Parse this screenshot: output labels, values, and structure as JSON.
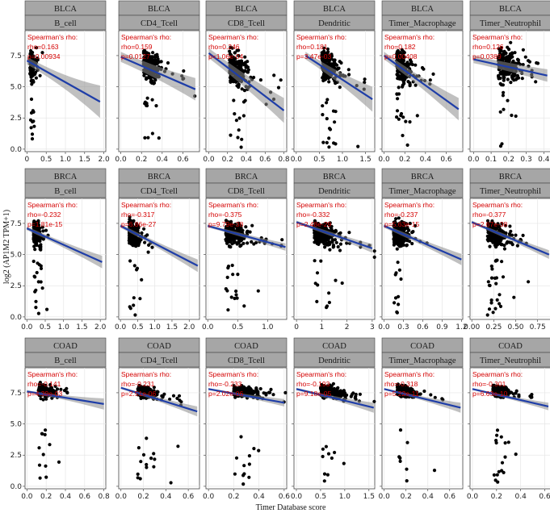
{
  "figure": {
    "xlabel": "Timer Database score",
    "ylabel": "log2 (AP1M2 TPM+1)"
  },
  "stats_label": "Spearman's rho:",
  "colors": {
    "strip_bg": "#a6a6a6",
    "panel_border": "#444444",
    "grid": "#e6e6e6",
    "point": "#000000",
    "fit_line": "#1f3ea8",
    "band": "#8c8c8c",
    "stat_text": "#d40000"
  },
  "chart_data": [
    {
      "type": "scatter",
      "cancer": "BLCA",
      "cell": "B_cell",
      "x_ticks": [
        0.0,
        0.5,
        1.0,
        1.5,
        2.0
      ],
      "x_tick_labels": [
        "0",
        "0.5",
        "1.0",
        "1.5",
        "2.0"
      ],
      "xlim": [
        -0.05,
        2.05
      ],
      "y_ticks": [
        0.0,
        2.5,
        5.0,
        7.5
      ],
      "y_tick_labels": [
        "0.0",
        "2.5",
        "5.0",
        "7.5"
      ],
      "ylim": [
        -0.2,
        9.5
      ],
      "rho": "rho=0.163",
      "p": "p=0.00934",
      "fit": {
        "x": [
          0.0,
          1.9
        ],
        "y": [
          7.1,
          3.8
        ]
      },
      "band_width": [
        0.3,
        1.3
      ],
      "cloud": {
        "cx": 0.08,
        "sx": 0.09,
        "cy": 6.8,
        "sy": 1.3,
        "n": 160,
        "seed": 11
      }
    },
    {
      "type": "scatter",
      "cancer": "BLCA",
      "cell": "CD4_Tcell",
      "x_ticks": [
        0.0,
        0.2,
        0.4,
        0.6
      ],
      "x_tick_labels": [
        "0.0",
        "0.2",
        "0.4",
        "0.6"
      ],
      "xlim": [
        -0.02,
        0.76
      ],
      "y_ticks": [
        0.0,
        2.5,
        5.0,
        7.5
      ],
      "y_tick_labels": [
        "",
        "",
        "",
        ""
      ],
      "ylim": [
        -0.2,
        9.5
      ],
      "rho": "rho=0.159",
      "p": "p=0.0127",
      "fit": {
        "x": [
          0.0,
          0.72
        ],
        "y": [
          7.4,
          4.8
        ]
      },
      "band_width": [
        0.4,
        0.9
      ],
      "cloud": {
        "cx": 0.22,
        "sx": 0.12,
        "cy": 6.8,
        "sy": 1.4,
        "n": 220,
        "seed": 12
      }
    },
    {
      "type": "scatter",
      "cancer": "BLCA",
      "cell": "CD8_Tcell",
      "x_ticks": [
        0.0,
        0.2,
        0.4,
        0.6,
        0.8
      ],
      "x_tick_labels": [
        "0.0",
        "0.2",
        "0.4",
        "0.6",
        "0.8"
      ],
      "xlim": [
        -0.03,
        0.83
      ],
      "y_ticks": [
        0.0,
        2.5,
        5.0,
        7.5
      ],
      "y_tick_labels": [
        "",
        "",
        "",
        ""
      ],
      "ylim": [
        -0.2,
        9.5
      ],
      "rho": "rho=0.246",
      "p": "p=1.06e-04",
      "fit": {
        "x": [
          0.0,
          0.8
        ],
        "y": [
          7.7,
          3.1
        ]
      },
      "band_width": [
        0.4,
        1.0
      ],
      "cloud": {
        "cx": 0.22,
        "sx": 0.14,
        "cy": 6.7,
        "sy": 1.6,
        "n": 220,
        "seed": 13
      }
    },
    {
      "type": "scatter",
      "cancer": "BLCA",
      "cell": "Dendritic",
      "x_ticks": [
        0.0,
        0.5,
        1.0,
        1.5
      ],
      "x_tick_labels": [
        "0.0",
        "0.5",
        "1.0",
        "1.5"
      ],
      "xlim": [
        -0.05,
        1.7
      ],
      "y_ticks": [
        0.0,
        2.5,
        5.0,
        7.5
      ],
      "y_tick_labels": [
        "",
        "",
        "",
        ""
      ],
      "ylim": [
        -0.2,
        9.5
      ],
      "rho": "rho=0.181",
      "p": "p=3.47e-03",
      "fit": {
        "x": [
          0.2,
          1.65
        ],
        "y": [
          7.5,
          4.0
        ]
      },
      "band_width": [
        0.3,
        1.0
      ],
      "cloud": {
        "cx": 0.55,
        "sx": 0.25,
        "cy": 6.9,
        "sy": 1.5,
        "n": 220,
        "seed": 14
      }
    },
    {
      "type": "scatter",
      "cancer": "BLCA",
      "cell": "Timer_Macrophage",
      "x_ticks": [
        0.0,
        0.2,
        0.4,
        0.6
      ],
      "x_tick_labels": [
        "0.0",
        "0.2",
        "0.4",
        "0.6"
      ],
      "xlim": [
        -0.02,
        0.76
      ],
      "y_ticks": [
        0.0,
        2.5,
        5.0,
        7.5
      ],
      "y_tick_labels": [
        "",
        "",
        "",
        ""
      ],
      "ylim": [
        -0.2,
        9.5
      ],
      "rho": "rho=0.182",
      "p": "p=0.00408",
      "fit": {
        "x": [
          0.0,
          0.72
        ],
        "y": [
          7.5,
          3.2
        ]
      },
      "band_width": [
        0.3,
        0.9
      ],
      "cloud": {
        "cx": 0.12,
        "sx": 0.09,
        "cy": 6.8,
        "sy": 1.5,
        "n": 200,
        "seed": 15
      }
    },
    {
      "type": "scatter",
      "cancer": "BLCA",
      "cell": "Timer_Neutrophil",
      "x_ticks": [
        0.0,
        0.1,
        0.2,
        0.3,
        0.4
      ],
      "x_tick_labels": [
        "0.0",
        "0.1",
        "0.2",
        "0.3",
        "0.4"
      ],
      "xlim": [
        -0.02,
        0.44
      ],
      "y_ticks": [
        0.0,
        2.5,
        5.0,
        7.5
      ],
      "y_tick_labels": [
        "",
        "",
        "",
        ""
      ],
      "ylim": [
        -0.2,
        9.5
      ],
      "rho": "rho=0.126",
      "p": "p=0.0389",
      "fit": {
        "x": [
          0.0,
          0.42
        ],
        "y": [
          7.2,
          5.9
        ]
      },
      "band_width": [
        0.3,
        0.5
      ],
      "cloud": {
        "cx": 0.14,
        "sx": 0.08,
        "cy": 6.8,
        "sy": 1.5,
        "n": 220,
        "seed": 16
      }
    },
    {
      "type": "scatter",
      "cancer": "BRCA",
      "cell": "B_cell",
      "x_ticks": [
        0.0,
        0.5,
        1.0,
        1.5,
        2.0
      ],
      "x_tick_labels": [
        "0.0",
        "0.5",
        "1.0",
        "1.5",
        "2.0"
      ],
      "xlim": [
        -0.05,
        2.15
      ],
      "y_ticks": [
        0.0,
        2.5,
        5.0,
        7.5
      ],
      "y_tick_labels": [
        "0.0",
        "2.5",
        "5.0",
        "7.5"
      ],
      "ylim": [
        -0.2,
        9.5
      ],
      "rho": "rho=-0.232",
      "p": "p=1.81e-15",
      "fit": {
        "x": [
          0.0,
          2.05
        ],
        "y": [
          7.1,
          4.4
        ]
      },
      "band_width": [
        0.15,
        0.5
      ],
      "cloud": {
        "cx": 0.18,
        "sx": 0.14,
        "cy": 6.7,
        "sy": 1.1,
        "n": 240,
        "seed": 21
      }
    },
    {
      "type": "scatter",
      "cancer": "BRCA",
      "cell": "CD4_Tcell",
      "x_ticks": [
        0.0,
        0.5,
        1.0,
        1.5,
        2.0
      ],
      "x_tick_labels": [
        "0.0",
        "0.5",
        "1.0",
        "1.5",
        "2.0"
      ],
      "xlim": [
        -0.05,
        2.3
      ],
      "y_ticks": [
        0.0,
        2.5,
        5.0,
        7.5
      ],
      "y_tick_labels": [
        "",
        "",
        "",
        ""
      ],
      "ylim": [
        -0.2,
        9.5
      ],
      "rho": "rho=-0.317",
      "p": "p=6.86e-27",
      "fit": {
        "x": [
          0.0,
          2.25
        ],
        "y": [
          7.3,
          4.1
        ]
      },
      "band_width": [
        0.15,
        0.5
      ],
      "cloud": {
        "cx": 0.25,
        "sx": 0.2,
        "cy": 6.8,
        "sy": 1.1,
        "n": 260,
        "seed": 22
      }
    },
    {
      "type": "scatter",
      "cancer": "BRCA",
      "cell": "CD8_Tcell",
      "x_ticks": [
        0.0,
        0.5,
        1.0
      ],
      "x_tick_labels": [
        "0.0",
        "0.5",
        "1.0"
      ],
      "xlim": [
        -0.03,
        1.32
      ],
      "y_ticks": [
        0.0,
        2.5,
        5.0,
        7.5
      ],
      "y_tick_labels": [
        "",
        "",
        "",
        ""
      ],
      "ylim": [
        -0.2,
        9.5
      ],
      "rho": "rho=-0.375",
      "p": "p=9.79e-38",
      "fit": {
        "x": [
          0.0,
          1.3
        ],
        "y": [
          7.3,
          5.6
        ]
      },
      "band_width": [
        0.12,
        0.3
      ],
      "cloud": {
        "cx": 0.3,
        "sx": 0.22,
        "cy": 6.8,
        "sy": 1.0,
        "n": 280,
        "seed": 23
      }
    },
    {
      "type": "scatter",
      "cancer": "BRCA",
      "cell": "Dendritic",
      "x_ticks": [
        0,
        1,
        2,
        3
      ],
      "x_tick_labels": [
        "0",
        "1",
        "2",
        "3"
      ],
      "xlim": [
        -0.1,
        3.1
      ],
      "y_ticks": [
        0.0,
        2.5,
        5.0,
        7.5
      ],
      "y_tick_labels": [
        "",
        "",
        "",
        ""
      ],
      "ylim": [
        -0.2,
        9.5
      ],
      "rho": "rho=-0.332",
      "p": "p=2.48e-29",
      "fit": {
        "x": [
          0.0,
          3.0
        ],
        "y": [
          7.6,
          5.5
        ]
      },
      "band_width": [
        0.12,
        0.35
      ],
      "cloud": {
        "cx": 0.7,
        "sx": 0.55,
        "cy": 6.8,
        "sy": 1.0,
        "n": 280,
        "seed": 24
      }
    },
    {
      "type": "scatter",
      "cancer": "BRCA",
      "cell": "Timer_Macrophage",
      "x_ticks": [
        0.0,
        0.3,
        0.6,
        0.9,
        1.2
      ],
      "x_tick_labels": [
        "0.0",
        "0.3",
        "0.6",
        "0.9",
        "1.2"
      ],
      "xlim": [
        -0.03,
        1.22
      ],
      "y_ticks": [
        0.0,
        2.5,
        5.0,
        7.5
      ],
      "y_tick_labels": [
        "",
        "",
        "",
        ""
      ],
      "ylim": [
        -0.2,
        9.5
      ],
      "rho": "rho=-0.237",
      "p": "p=5.63e-15",
      "fit": {
        "x": [
          0.0,
          1.2
        ],
        "y": [
          7.3,
          4.6
        ]
      },
      "band_width": [
        0.15,
        0.45
      ],
      "cloud": {
        "cx": 0.15,
        "sx": 0.12,
        "cy": 6.8,
        "sy": 1.1,
        "n": 240,
        "seed": 25
      }
    },
    {
      "type": "scatter",
      "cancer": "BRCA",
      "cell": "Timer_Neutrophil",
      "x_ticks": [
        0.0,
        0.25,
        0.5,
        0.75
      ],
      "x_tick_labels": [
        "0.00",
        "0.25",
        "0.50",
        "0.75"
      ],
      "xlim": [
        -0.02,
        0.9
      ],
      "y_ticks": [
        0.0,
        2.5,
        5.0,
        7.5
      ],
      "y_tick_labels": [
        "",
        "",
        "",
        ""
      ],
      "ylim": [
        -0.2,
        9.5
      ],
      "rho": "rho=-0.377",
      "p": "p=2.67e-38",
      "fit": {
        "x": [
          0.0,
          0.88
        ],
        "y": [
          7.6,
          5.0
        ]
      },
      "band_width": [
        0.12,
        0.35
      ],
      "cloud": {
        "cx": 0.18,
        "sx": 0.14,
        "cy": 6.8,
        "sy": 1.0,
        "n": 260,
        "seed": 26
      }
    },
    {
      "type": "scatter",
      "cancer": "COAD",
      "cell": "B_cell",
      "x_ticks": [
        0.0,
        0.2,
        0.4,
        0.6,
        0.8
      ],
      "x_tick_labels": [
        "0.0",
        "0.2",
        "0.4",
        "0.6",
        "0.8"
      ],
      "xlim": [
        -0.02,
        0.82
      ],
      "y_ticks": [
        0.0,
        2.5,
        5.0,
        7.5
      ],
      "y_tick_labels": [
        "0.0",
        "2.5",
        "5.0",
        "7.5"
      ],
      "ylim": [
        -0.2,
        9.5
      ],
      "rho": "rho=-0.141",
      "p": "p=4.39e-03",
      "fit": {
        "x": [
          0.0,
          0.8
        ],
        "y": [
          7.6,
          6.6
        ]
      },
      "band_width": [
        0.1,
        0.45
      ],
      "cloud": {
        "cx": 0.12,
        "sx": 0.1,
        "cy": 7.7,
        "sy": 0.55,
        "n": 200,
        "seed": 31
      }
    },
    {
      "type": "scatter",
      "cancer": "COAD",
      "cell": "CD4_Tcell",
      "x_ticks": [
        0.0,
        0.2,
        0.4,
        0.6
      ],
      "x_tick_labels": [
        "0.0",
        "0.2",
        "0.4",
        "0.6"
      ],
      "xlim": [
        -0.02,
        0.7
      ],
      "y_ticks": [
        0.0,
        2.5,
        5.0,
        7.5
      ],
      "y_tick_labels": [
        "",
        "",
        "",
        ""
      ],
      "ylim": [
        -0.2,
        9.5
      ],
      "rho": "rho=-0.231",
      "p": "p=2.51e-06",
      "fit": {
        "x": [
          0.0,
          0.68
        ],
        "y": [
          7.9,
          6.0
        ]
      },
      "band_width": [
        0.1,
        0.4
      ],
      "cloud": {
        "cx": 0.15,
        "sx": 0.1,
        "cy": 7.7,
        "sy": 0.55,
        "n": 220,
        "seed": 32
      }
    },
    {
      "type": "scatter",
      "cancer": "COAD",
      "cell": "CD8_Tcell",
      "x_ticks": [
        0.0,
        0.2,
        0.4,
        0.6
      ],
      "x_tick_labels": [
        "0.0",
        "0.2",
        "0.4",
        "0.6"
      ],
      "xlim": [
        -0.02,
        0.62
      ],
      "y_ticks": [
        0.0,
        2.5,
        5.0,
        7.5
      ],
      "y_tick_labels": [
        "",
        "",
        "",
        ""
      ],
      "ylim": [
        -0.2,
        9.5
      ],
      "rho": "rho=-0.233",
      "p": "p=2.02e-06",
      "fit": {
        "x": [
          0.0,
          0.6
        ],
        "y": [
          7.8,
          6.7
        ]
      },
      "band_width": [
        0.08,
        0.3
      ],
      "cloud": {
        "cx": 0.2,
        "sx": 0.12,
        "cy": 7.7,
        "sy": 0.5,
        "n": 240,
        "seed": 33
      }
    },
    {
      "type": "scatter",
      "cancer": "COAD",
      "cell": "Dendritic",
      "x_ticks": [
        0.0,
        0.5,
        1.0,
        1.5
      ],
      "x_tick_labels": [
        "0.0",
        "0.5",
        "1.0",
        "1.5"
      ],
      "xlim": [
        -0.05,
        1.62
      ],
      "y_ticks": [
        0.0,
        2.5,
        5.0,
        7.5
      ],
      "y_tick_labels": [
        "",
        "",
        "",
        ""
      ],
      "ylim": [
        -0.2,
        9.5
      ],
      "rho": "rho=-0.193",
      "p": "p=9.18e-05",
      "fit": {
        "x": [
          0.0,
          1.6
        ],
        "y": [
          7.8,
          6.3
        ]
      },
      "band_width": [
        0.1,
        0.4
      ],
      "cloud": {
        "cx": 0.5,
        "sx": 0.3,
        "cy": 7.7,
        "sy": 0.55,
        "n": 240,
        "seed": 34
      }
    },
    {
      "type": "scatter",
      "cancer": "COAD",
      "cell": "Timer_Macrophage",
      "x_ticks": [
        0.0,
        0.2,
        0.4,
        0.6
      ],
      "x_tick_labels": [
        "0.0",
        "0.2",
        "0.4",
        "0.6"
      ],
      "xlim": [
        -0.02,
        0.72
      ],
      "y_ticks": [
        0.0,
        2.5,
        5.0,
        7.5
      ],
      "y_tick_labels": [
        "",
        "",
        "",
        ""
      ],
      "ylim": [
        -0.2,
        9.5
      ],
      "rho": "rho=-0.318",
      "p": "p=5.22e-11",
      "fit": {
        "x": [
          0.0,
          0.7
        ],
        "y": [
          7.8,
          6.3
        ]
      },
      "band_width": [
        0.08,
        0.4
      ],
      "cloud": {
        "cx": 0.12,
        "sx": 0.09,
        "cy": 7.7,
        "sy": 0.5,
        "n": 220,
        "seed": 35
      }
    },
    {
      "type": "scatter",
      "cancer": "COAD",
      "cell": "Timer_Neutrophil",
      "x_ticks": [
        0.0,
        0.2,
        0.4,
        0.6
      ],
      "x_tick_labels": [
        "0.0",
        "0.2",
        "0.4",
        "0.6"
      ],
      "xlim": [
        -0.02,
        0.65
      ],
      "y_ticks": [
        0.0,
        2.5,
        5.0,
        7.5
      ],
      "y_tick_labels": [
        "",
        "",
        "",
        ""
      ],
      "ylim": [
        -0.2,
        9.5
      ],
      "rho": "rho=-0.301",
      "p": "p=6.63e-10",
      "fit": {
        "x": [
          0.0,
          0.63
        ],
        "y": [
          7.8,
          6.4
        ]
      },
      "band_width": [
        0.08,
        0.3
      ],
      "cloud": {
        "cx": 0.17,
        "sx": 0.1,
        "cy": 7.7,
        "sy": 0.5,
        "n": 220,
        "seed": 36
      }
    }
  ]
}
